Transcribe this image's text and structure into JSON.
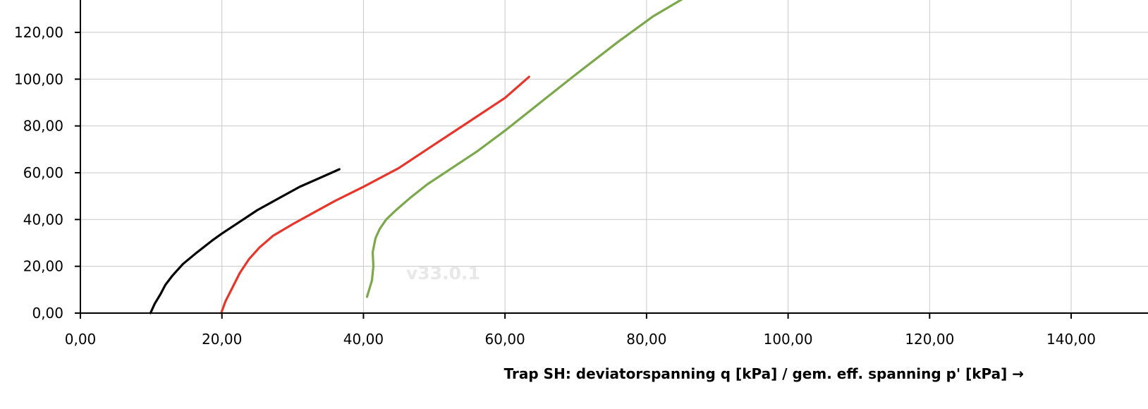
{
  "chart_data": {
    "type": "line",
    "title": "",
    "xlabel": "Trap SH: deviatorspanning q [kPa] / gem. eff. spanning p' [kPa] →",
    "ylabel": "",
    "watermark": "v33.0.1",
    "grid": true,
    "legend": "none",
    "xlim": [
      0,
      145
    ],
    "ylim": [
      0,
      135
    ],
    "xticks": [
      0,
      20,
      40,
      60,
      80,
      100,
      120,
      140
    ],
    "yticks": [
      0,
      20,
      40,
      60,
      80,
      100,
      120
    ],
    "xtick_labels": [
      "0,00",
      "20,00",
      "40,00",
      "60,00",
      "80,00",
      "100,00",
      "120,00",
      "140,00"
    ],
    "ytick_labels": [
      "0,00",
      "20,00",
      "40,00",
      "60,00",
      "80,00",
      "100,00",
      "120,00"
    ],
    "series": [
      {
        "color": "#000000",
        "x": [
          9.9,
          10.5,
          11.3,
          12.0,
          13.0,
          14.5,
          16.5,
          18.6,
          20.0,
          22.0,
          25.0,
          28.0,
          31.0,
          34.0,
          36.6
        ],
        "y": [
          0,
          4,
          8,
          12,
          16,
          21,
          26,
          31,
          34,
          38,
          44,
          49,
          54,
          58,
          61.5
        ]
      },
      {
        "color": "#e8352a",
        "x": [
          19.9,
          20.5,
          21.5,
          22.5,
          23.8,
          25.3,
          27.2,
          30.0,
          33.0,
          36.0,
          40.0,
          45.0,
          50.0,
          55.0,
          60.0,
          63.4
        ],
        "y": [
          0,
          5,
          11,
          17,
          23,
          28,
          33,
          38,
          43,
          48,
          54,
          62,
          72,
          82,
          92,
          101
        ]
      },
      {
        "color": "#7aa84a",
        "x": [
          40.5,
          41.2,
          41.4,
          41.3,
          41.7,
          42.3,
          43.2,
          44.6,
          46.5,
          49.0,
          52.0,
          56.0,
          60.0,
          65.0,
          70.0,
          76.0,
          81.0,
          85.5
        ],
        "y": [
          7,
          14,
          20,
          26,
          32,
          36,
          40,
          44,
          49,
          55,
          61,
          69,
          78,
          90,
          102,
          116,
          127,
          135
        ]
      }
    ]
  }
}
